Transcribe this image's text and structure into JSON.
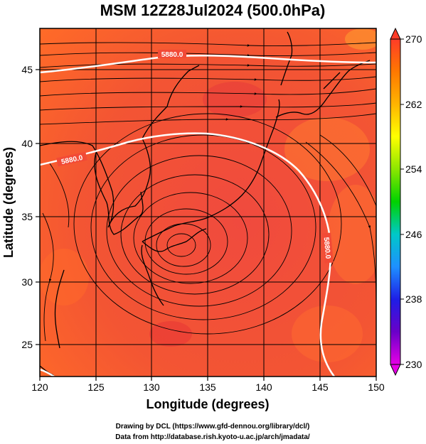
{
  "title": "MSM 12Z28Jul2024 (500.0hPa)",
  "xaxis": {
    "label": "Longitude (degrees)",
    "ticks": [
      "120",
      "125",
      "130",
      "135",
      "140",
      "145",
      "150"
    ],
    "range": [
      120,
      150
    ]
  },
  "yaxis": {
    "label": "Latitude  (degrees)",
    "ticks": [
      "25",
      "30",
      "35",
      "40",
      "45"
    ],
    "range": [
      22.5,
      47.5
    ]
  },
  "colorbar": {
    "ticks": [
      "270",
      "262",
      "254",
      "246",
      "238",
      "230"
    ],
    "range": [
      230,
      270
    ],
    "colors": [
      "#e600e6",
      "#6a00c8",
      "#1e1ee6",
      "#1e90ff",
      "#00c8c8",
      "#00d200",
      "#8ce600",
      "#ffff00",
      "#ffb400",
      "#ff7800",
      "#ff3c28"
    ]
  },
  "contours": [
    {
      "label": "5880.0"
    },
    {
      "label": "5880.0"
    },
    {
      "label": "5880.0"
    }
  ],
  "credits": [
    "Drawing by DCL (https://www.gfd-dennou.org/library/dcl/)",
    "Data from http://database.rish.kyoto-u.ac.jp/arch/jmadata/"
  ],
  "colors": {
    "field_base": "#f24a36",
    "field_warm": "#ff6a2a",
    "field_cool": "#e83a3a",
    "contour": "#ffffff",
    "streamline": "#000000"
  }
}
